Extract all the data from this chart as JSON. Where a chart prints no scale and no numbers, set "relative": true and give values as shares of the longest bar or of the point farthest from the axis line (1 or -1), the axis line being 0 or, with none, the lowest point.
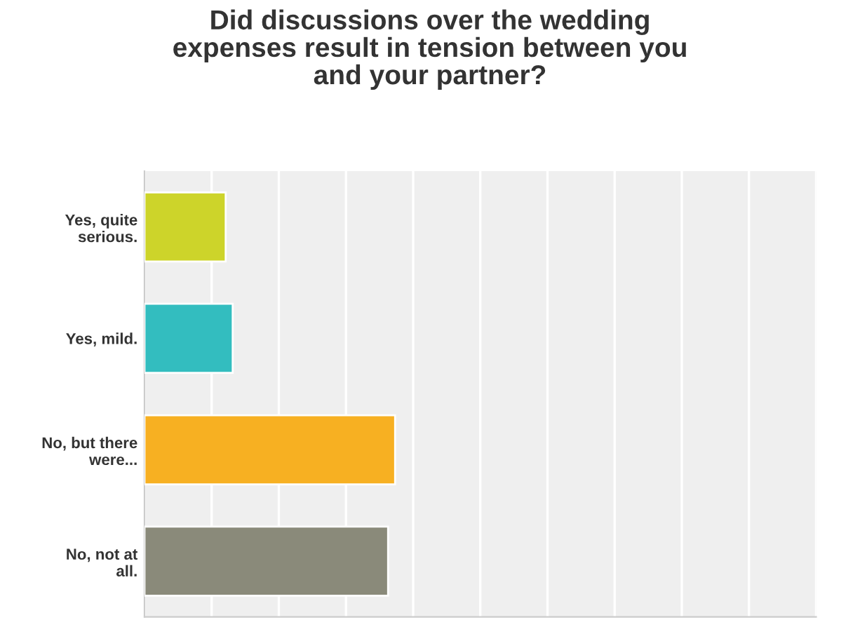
{
  "chart_data": {
    "type": "bar",
    "orientation": "horizontal",
    "relative": true,
    "title": "Did discussions over the wedding expenses result in tension between you and your partner?",
    "categories": [
      "Yes, quite serious.",
      "Yes, mild.",
      "No, but there were...",
      "No, not at all."
    ],
    "values": [
      0.324,
      0.352,
      1,
      0.972
    ],
    "colors": [
      "#cdd42a",
      "#33bdbf",
      "#f7b022",
      "#8a8a7a"
    ],
    "grid": "x",
    "legend": false
  }
}
